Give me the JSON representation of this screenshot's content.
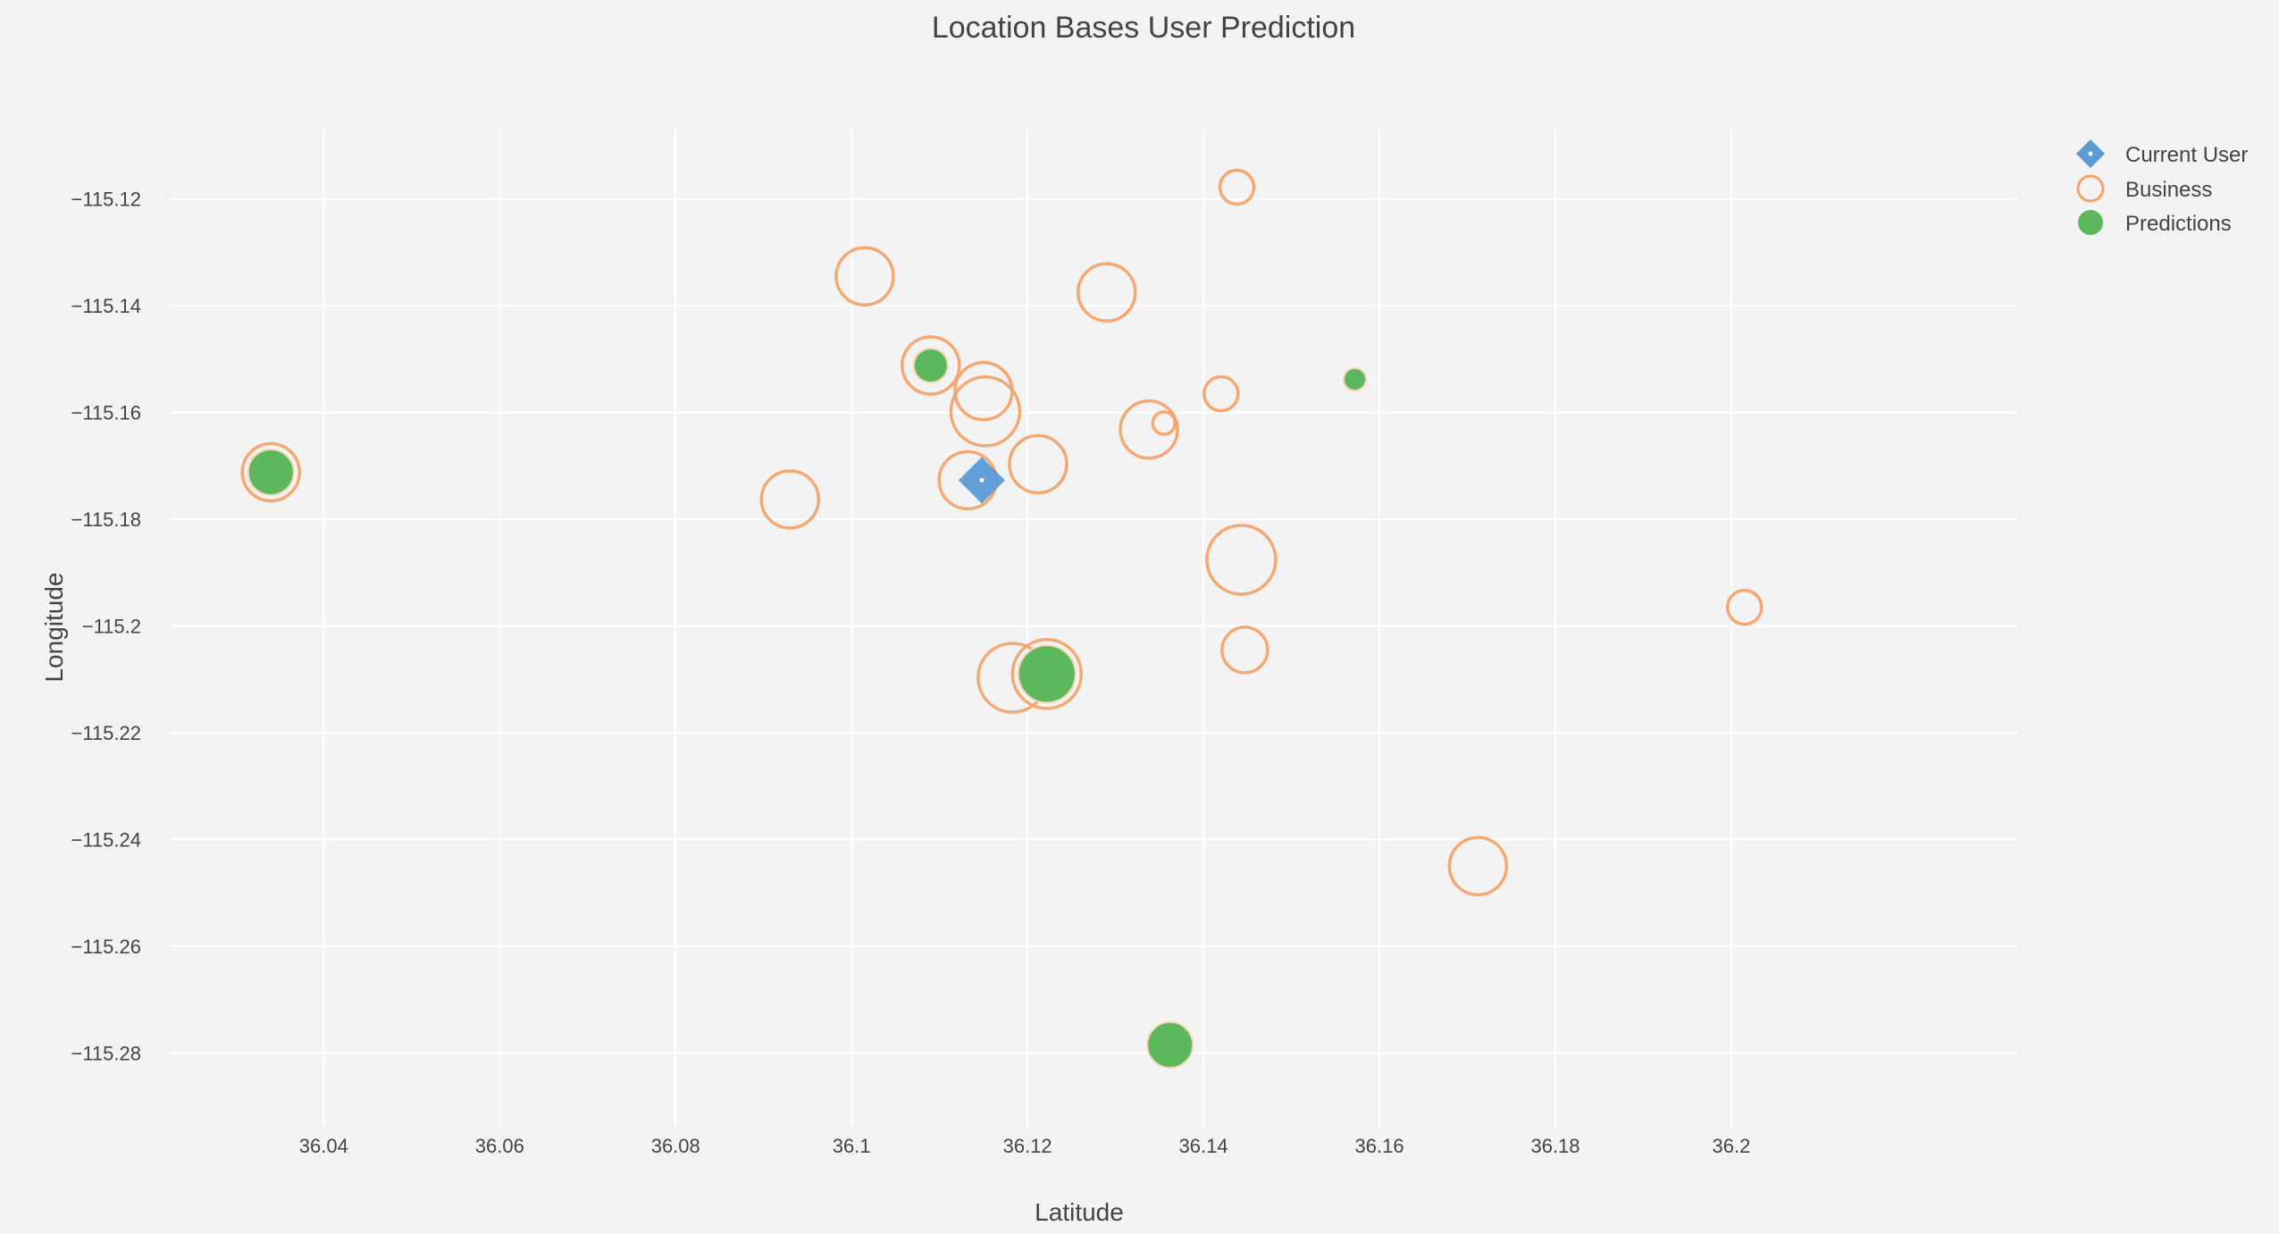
{
  "chart_data": {
    "type": "scatter",
    "title": "Location Bases User Prediction",
    "xlabel": "Latitude",
    "ylabel": "Longitude",
    "xlim": [
      36.0225,
      36.2325
    ],
    "ylim": [
      -115.294,
      -115.107
    ],
    "x_ticks": [
      36.04,
      36.06,
      36.08,
      36.1,
      36.12,
      36.14,
      36.16,
      36.18,
      36.2
    ],
    "x_tick_labels": [
      "36.04",
      "36.06",
      "36.08",
      "36.1",
      "36.12",
      "36.14",
      "36.16",
      "36.18",
      "36.2"
    ],
    "y_ticks": [
      -115.12,
      -115.14,
      -115.16,
      -115.18,
      -115.2,
      -115.22,
      -115.24,
      -115.26,
      -115.28
    ],
    "y_tick_labels": [
      "−115.12",
      "−115.14",
      "−115.16",
      "−115.18",
      "−115.2",
      "−115.22",
      "−115.24",
      "−115.26",
      "−115.28"
    ],
    "grid": true,
    "legend_position": "top-right",
    "colors": {
      "current_user": "#5b9bd5",
      "business": "#f4a36a",
      "predictions": "#5cb85c",
      "grid": "#ffffff",
      "background": "#f3f3f3"
    },
    "series": [
      {
        "name": "Current User",
        "marker": "diamond",
        "points": [
          {
            "x": 36.1148,
            "y": -115.1727,
            "size": 3
          }
        ]
      },
      {
        "name": "Business",
        "marker": "circle-open",
        "points": [
          {
            "x": 36.1438,
            "y": -115.1178,
            "size": 2
          },
          {
            "x": 36.1015,
            "y": -115.1345,
            "size": 4
          },
          {
            "x": 36.129,
            "y": -115.1375,
            "size": 4
          },
          {
            "x": 36.109,
            "y": -115.1512,
            "size": 4
          },
          {
            "x": 36.115,
            "y": -115.156,
            "size": 4
          },
          {
            "x": 36.142,
            "y": -115.1565,
            "size": 2
          },
          {
            "x": 36.1152,
            "y": -115.1598,
            "size": 5
          },
          {
            "x": 36.1338,
            "y": -115.1632,
            "size": 4
          },
          {
            "x": 36.1355,
            "y": -115.162,
            "size": 1
          },
          {
            "x": 36.1212,
            "y": -115.1697,
            "size": 4
          },
          {
            "x": 36.1132,
            "y": -115.1727,
            "size": 4
          },
          {
            "x": 36.093,
            "y": -115.1763,
            "size": 4
          },
          {
            "x": 36.1443,
            "y": -115.1876,
            "size": 5
          },
          {
            "x": 36.2015,
            "y": -115.1965,
            "size": 2
          },
          {
            "x": 36.1447,
            "y": -115.2045,
            "size": 3
          },
          {
            "x": 36.1183,
            "y": -115.2097,
            "size": 5
          },
          {
            "x": 36.1712,
            "y": -115.245,
            "size": 4
          },
          {
            "x": 36.034,
            "y": -115.1712,
            "size": 4
          },
          {
            "x": 36.1222,
            "y": -115.209,
            "size": 5
          }
        ]
      },
      {
        "name": "Predictions",
        "marker": "circle",
        "points": [
          {
            "x": 36.034,
            "y": -115.1712,
            "size": 3
          },
          {
            "x": 36.109,
            "y": -115.1512,
            "size": 2
          },
          {
            "x": 36.1572,
            "y": -115.1538,
            "size": 1
          },
          {
            "x": 36.1222,
            "y": -115.209,
            "size": 4
          },
          {
            "x": 36.1362,
            "y": -115.2785,
            "size": 3
          }
        ]
      }
    ]
  }
}
